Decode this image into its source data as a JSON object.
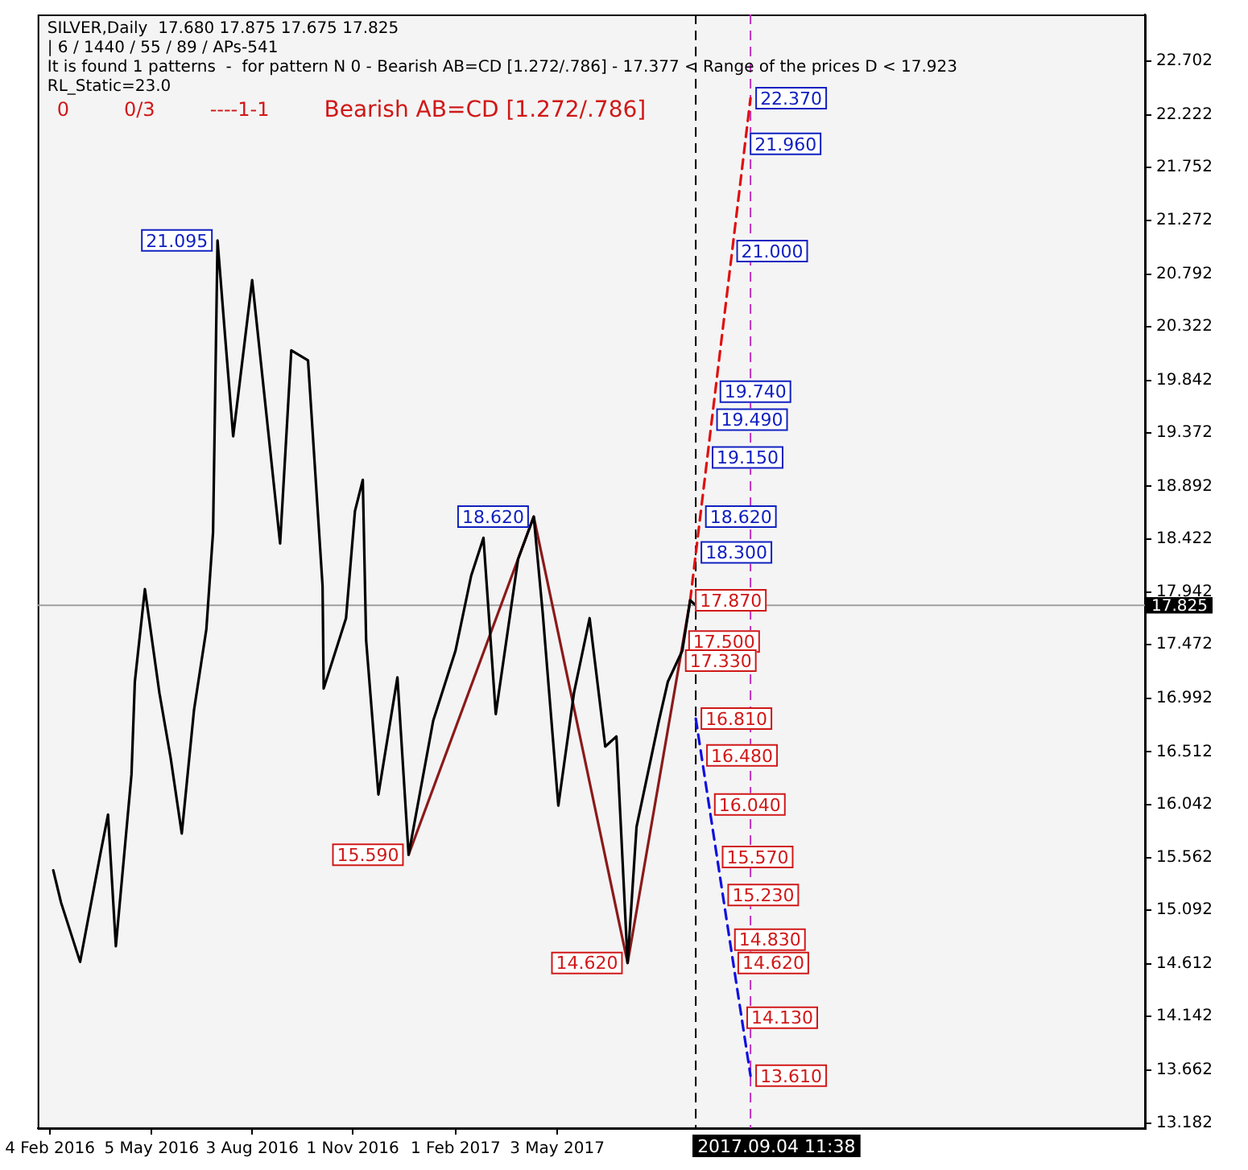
{
  "chart_data": {
    "type": "line",
    "title": "SILVER,Daily  17.680 17.875 17.675 17.825",
    "annotations": [
      "| 6 / 1440 / 55 / 89 / APs-541",
      "It is found 1 patterns  -  for pattern N 0 - Bearish AB=CD [1.272/.786] - 17.377 < Range of the prices D < 17.923",
      "RL_Static=23.0",
      "0",
      "0/3",
      "----1-1",
      "Bearish AB=CD [1.272/.786]",
      {
        "text": "21.095",
        "x": "2016-07-03",
        "y": 21.095
      },
      {
        "text": "18.620",
        "x": "2017-04-12",
        "y": 18.62
      },
      {
        "text": "15.590",
        "x": "2016-12-21",
        "y": 15.59
      },
      {
        "text": "14.620",
        "x": "2017-07-05",
        "y": 14.62
      },
      {
        "text": "22.370",
        "x": "2017-10-23",
        "y": 22.37
      },
      {
        "text": "21.960",
        "x": "2017-10-18",
        "y": 21.96
      },
      {
        "text": "21.000",
        "x": "2017-10-06",
        "y": 21.0
      },
      {
        "text": "19.740",
        "x": "2017-09-21",
        "y": 19.74
      },
      {
        "text": "19.490",
        "x": "2017-09-18",
        "y": 19.49
      },
      {
        "text": "19.150",
        "x": "2017-09-14",
        "y": 19.15
      },
      {
        "text": "18.620",
        "x": "2017-09-08",
        "y": 18.62
      },
      {
        "text": "18.300",
        "x": "2017-09-04",
        "y": 18.3
      },
      {
        "text": "17.870",
        "x": "2017-08-30",
        "y": 17.87
      },
      {
        "text": "17.500",
        "x": "2017-08-24",
        "y": 17.5
      },
      {
        "text": "17.330",
        "x": "2017-08-21",
        "y": 17.33
      },
      {
        "text": "16.810",
        "x": "2017-09-04",
        "y": 16.81
      },
      {
        "text": "16.480",
        "x": "2017-09-09",
        "y": 16.48
      },
      {
        "text": "16.040",
        "x": "2017-09-16",
        "y": 16.04
      },
      {
        "text": "15.570",
        "x": "2017-09-23",
        "y": 15.57
      },
      {
        "text": "15.230",
        "x": "2017-09-28",
        "y": 15.23
      },
      {
        "text": "14.830",
        "x": "2017-10-04",
        "y": 14.83
      },
      {
        "text": "14.620",
        "x": "2017-10-07",
        "y": 14.62
      },
      {
        "text": "14.130",
        "x": "2017-10-15",
        "y": 14.13
      },
      {
        "text": "13.610",
        "x": "2017-10-23",
        "y": 13.61
      }
    ],
    "series": [
      {
        "color": "#000000",
        "x": [
          "2016-02-07",
          "2016-02-14",
          "2016-03-02",
          "2016-03-20",
          "2016-03-27",
          "2016-04-03",
          "2016-04-17",
          "2016-04-20",
          "2016-04-29",
          "2016-05-12",
          "2016-05-22",
          "2016-06-01",
          "2016-06-12",
          "2016-06-23",
          "2016-06-29",
          "2016-07-03",
          "2016-07-10",
          "2016-07-17",
          "2016-08-03",
          "2016-08-28",
          "2016-09-07",
          "2016-09-22",
          "2016-10-05",
          "2016-10-06",
          "2016-10-26",
          "2016-11-03",
          "2016-11-10",
          "2016-11-13",
          "2016-11-24",
          "2016-12-11",
          "2016-12-21",
          "2017-01-12",
          "2017-02-01",
          "2017-02-15",
          "2017-02-26",
          "2017-03-09",
          "2017-03-29",
          "2017-04-12",
          "2017-04-20",
          "2017-05-04",
          "2017-05-18",
          "2017-06-01",
          "2017-06-15",
          "2017-06-25",
          "2017-07-05",
          "2017-07-13",
          "2017-08-02",
          "2017-08-10",
          "2017-08-23",
          "2017-08-30",
          "2017-09-04"
        ],
        "values": [
          15.45,
          15.16,
          14.63,
          15.59,
          15.95,
          14.77,
          16.31,
          17.14,
          17.97,
          17.04,
          16.46,
          15.78,
          16.89,
          17.61,
          18.48,
          21.095,
          20.21,
          19.34,
          20.74,
          18.38,
          20.11,
          20.02,
          18.0,
          17.08,
          17.71,
          18.67,
          18.95,
          17.51,
          16.13,
          17.18,
          15.59,
          16.79,
          17.42,
          18.09,
          18.43,
          16.85,
          18.24,
          18.62,
          17.76,
          16.03,
          17.04,
          17.71,
          16.56,
          16.65,
          14.62,
          15.84,
          16.79,
          17.14,
          17.42,
          17.87,
          17.825
        ]
      },
      {
        "color": "#8b1a1a",
        "x": [
          "2016-12-21",
          "2017-04-12",
          "2017-07-05",
          "2017-08-30"
        ],
        "values": [
          15.59,
          18.62,
          14.62,
          17.87
        ]
      },
      {
        "color": "#e01010",
        "line_style": "dashed",
        "x": [
          "2017-08-30",
          "2017-10-23"
        ],
        "values": [
          17.87,
          22.37
        ]
      },
      {
        "color": "#1010e0",
        "line_style": "dashed",
        "x": [
          "2017-09-04",
          "2017-10-23"
        ],
        "values": [
          16.81,
          13.61
        ]
      }
    ],
    "xlim": [
      "2016-01-24",
      "2018-10-11"
    ],
    "xticks": [
      {
        "value": "2016-02-04",
        "label": "4 Feb 2016"
      },
      {
        "value": "2016-05-05",
        "label": "5 May 2016"
      },
      {
        "value": "2016-08-03",
        "label": "3 Aug 2016"
      },
      {
        "value": "2016-11-01",
        "label": "1 Nov 2016"
      },
      {
        "value": "2017-02-01",
        "label": "1 Feb 2017"
      },
      {
        "value": "2017-05-03",
        "label": "3 May 2017"
      }
    ],
    "ylim": [
      13.14,
      23.12
    ],
    "yticks": [
      13.182,
      13.662,
      14.142,
      14.612,
      15.092,
      15.562,
      16.042,
      16.512,
      16.992,
      17.472,
      17.942,
      18.422,
      18.892,
      19.372,
      19.842,
      20.322,
      20.792,
      21.272,
      21.752,
      22.222,
      22.702
    ],
    "ref_lines": [
      {
        "axis": "y",
        "value": 17.825,
        "label": "17.825",
        "color": "#a0a0a0"
      },
      {
        "axis": "x",
        "value": "2017-09-04",
        "label": "2017.09.04 11:38",
        "color": "#000000",
        "line_style": "dashed"
      },
      {
        "axis": "x",
        "value": "2017-10-23",
        "color": "#c030c0",
        "line_style": "dashed"
      }
    ],
    "grid": false,
    "legend": false,
    "marker": "none",
    "line_style": "solid"
  }
}
